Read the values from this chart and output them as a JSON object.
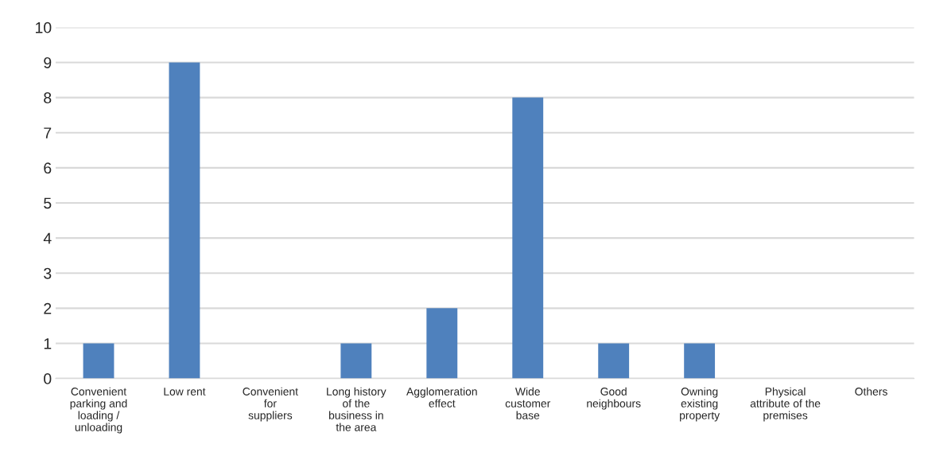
{
  "chart_data": {
    "type": "bar",
    "categories": [
      "Convenient\nparking and\nloading /\nunloading",
      "Low rent",
      "Convenient\nfor\nsuppliers",
      "Long history\nof the\nbusiness in\nthe area",
      "Agglomeration\neffect",
      "Wide\ncustomer\nbase",
      "Good\nneighbours",
      "Owning\nexisting\nproperty",
      "Physical\nattribute of the\npremises",
      "Others"
    ],
    "values": [
      1,
      9,
      0,
      1,
      2,
      8,
      1,
      1,
      0,
      0
    ],
    "color": "#4f81bd",
    "ylim": [
      0,
      10
    ],
    "yticks": [
      0,
      1,
      2,
      3,
      4,
      5,
      6,
      7,
      8,
      9,
      10
    ],
    "grid": "y"
  }
}
